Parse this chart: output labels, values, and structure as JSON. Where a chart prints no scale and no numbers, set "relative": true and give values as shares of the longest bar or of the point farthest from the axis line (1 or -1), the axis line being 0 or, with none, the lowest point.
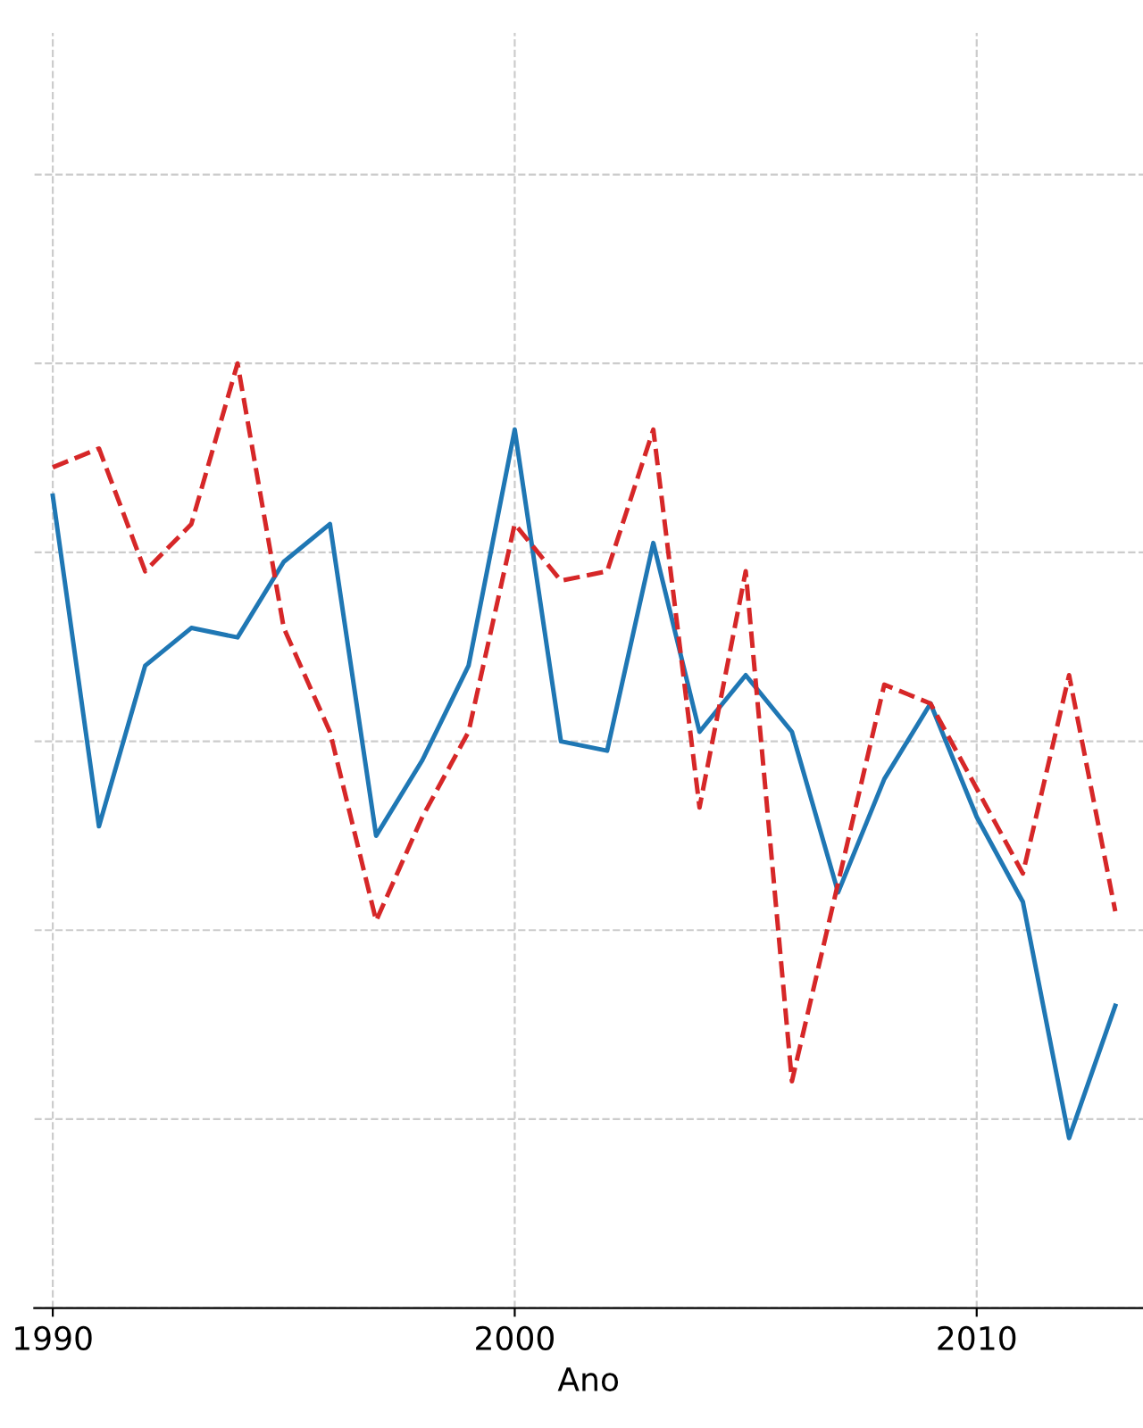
{
  "chart_data": {
    "type": "line",
    "xlabel": "Ano",
    "relative": true,
    "tick_labels": "x",
    "grid": true,
    "x": [
      1990,
      1991,
      1992,
      1993,
      1994,
      1995,
      1996,
      1997,
      1998,
      1999,
      2000,
      2001,
      2002,
      2003,
      2004,
      2005,
      2006,
      2007,
      2008,
      2009,
      2010,
      2011,
      2012,
      2013
    ],
    "xlim": [
      1989.6,
      2013.6
    ],
    "xticks": [
      1990,
      2000,
      2010
    ],
    "series": [
      {
        "color": "#1f77b4",
        "line_style": "solid",
        "values": [
          0.86,
          0.51,
          0.68,
          0.72,
          0.71,
          0.79,
          0.83,
          0.5,
          0.58,
          0.68,
          0.93,
          0.6,
          0.59,
          0.81,
          0.61,
          0.67,
          0.61,
          0.44,
          0.56,
          0.64,
          0.52,
          0.43,
          0.18,
          0.32
        ]
      },
      {
        "color": "#d62728",
        "line_style": "dashed",
        "values": [
          0.89,
          0.91,
          0.78,
          0.83,
          1.0,
          0.72,
          0.61,
          0.41,
          0.52,
          0.61,
          0.83,
          0.77,
          0.78,
          0.93,
          0.53,
          0.78,
          0.24,
          0.45,
          0.66,
          0.64,
          0.55,
          0.46,
          0.67,
          0.42
        ]
      }
    ]
  }
}
